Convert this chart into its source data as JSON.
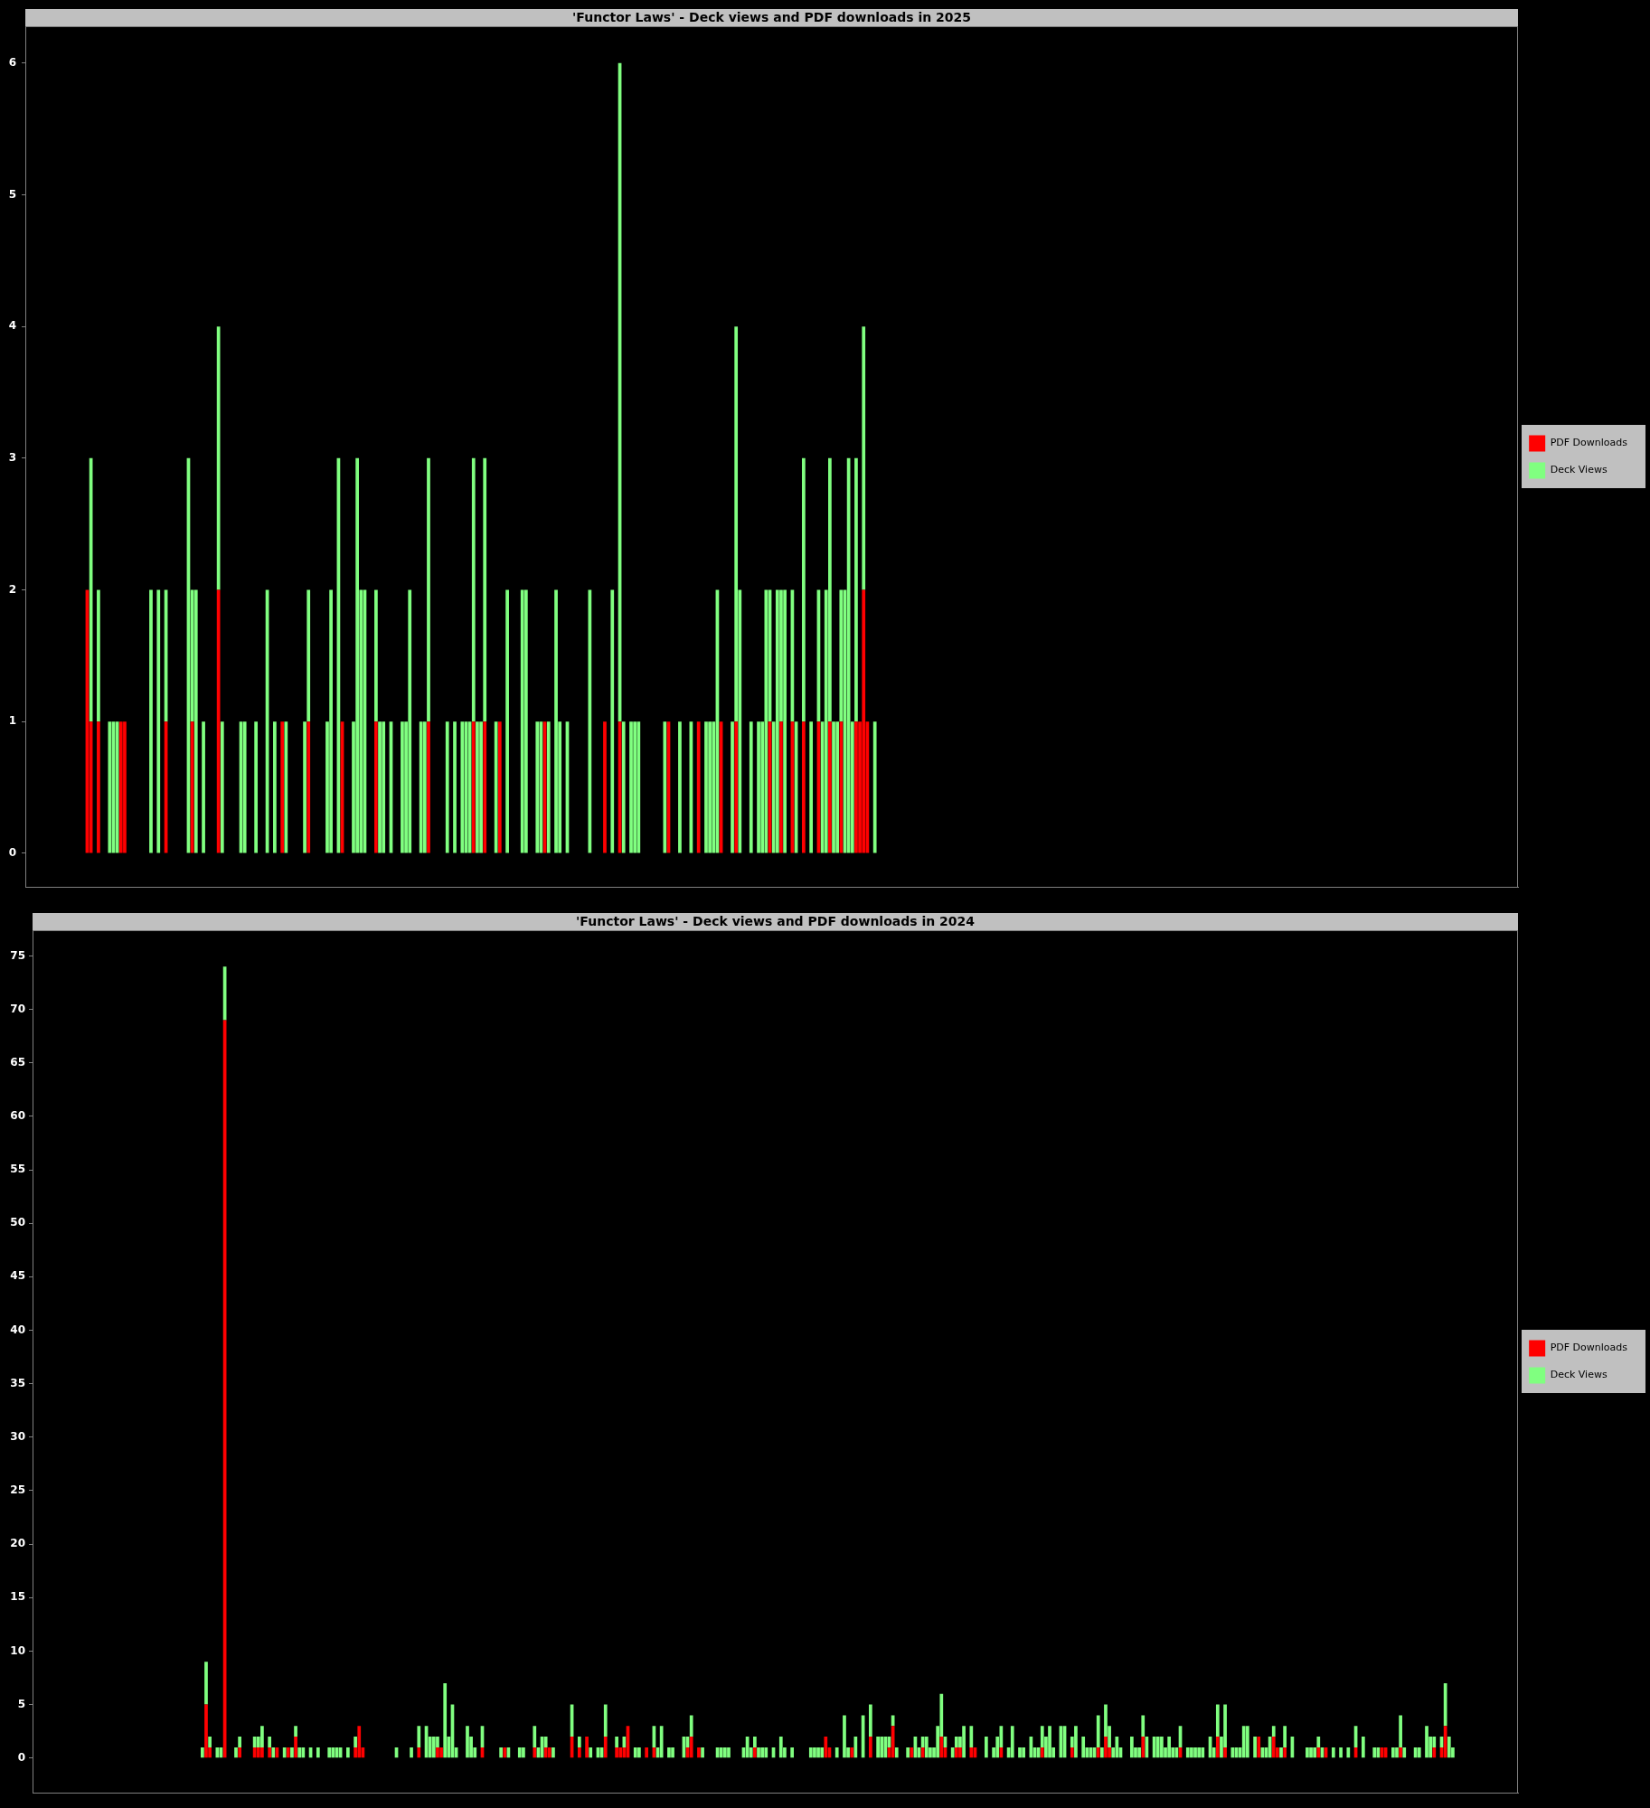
{
  "chart_data": [
    {
      "type": "bar",
      "title": "'Functor Laws' - Deck views and PDF downloads in 2025",
      "categories": [
        null,
        null,
        null,
        null,
        null,
        null,
        null,
        null,
        null,
        null,
        null,
        null,
        null,
        null,
        null,
        null,
        null,
        null,
        null,
        null,
        null,
        null,
        null,
        null,
        null,
        null,
        null,
        null,
        null,
        null,
        null,
        null,
        null,
        null,
        null,
        null,
        null,
        null,
        null,
        null,
        null,
        null,
        null,
        null,
        null,
        null,
        null,
        null,
        null,
        null,
        null,
        null,
        null,
        null,
        null,
        null,
        null,
        null,
        null,
        null,
        null,
        null,
        null,
        null,
        null,
        null,
        null,
        null,
        null,
        null,
        null,
        null,
        null,
        null,
        null,
        null,
        null,
        null,
        null,
        null,
        null,
        null,
        null,
        null,
        null,
        null,
        null,
        null,
        null,
        null,
        null,
        null,
        null,
        null,
        null,
        null,
        null,
        null,
        null,
        null,
        null,
        null,
        null,
        null,
        null,
        null,
        null,
        null,
        null,
        null,
        null,
        null,
        null,
        null,
        null,
        null,
        null,
        null,
        null,
        null,
        null,
        null,
        null,
        null,
        null,
        null,
        null,
        null,
        null,
        null,
        null,
        null,
        null,
        null,
        null,
        null,
        null,
        null,
        null,
        null,
        null,
        null,
        null,
        null,
        null,
        null,
        null,
        null,
        null,
        null,
        null,
        null,
        null,
        null,
        null,
        null,
        null,
        null,
        null,
        null,
        null,
        null,
        null,
        null,
        null,
        null,
        null,
        null,
        null,
        null,
        null,
        null,
        null,
        null,
        null,
        null,
        null,
        null,
        null,
        null,
        null,
        null,
        null,
        null,
        null,
        null,
        null,
        null,
        null,
        null,
        null,
        null,
        null,
        null,
        null,
        null,
        null,
        null,
        null,
        null,
        null,
        null,
        null,
        null,
        null,
        null,
        null,
        null,
        null,
        null,
        null,
        null,
        null,
        null,
        null,
        null,
        null,
        null,
        null,
        null,
        null,
        null,
        null,
        null,
        null,
        null,
        null,
        null,
        null,
        null,
        null,
        null,
        null,
        null,
        null,
        null,
        null,
        null,
        null,
        null,
        null,
        null,
        null,
        null,
        null,
        null,
        null,
        null,
        null,
        null,
        null,
        null,
        null,
        null,
        null,
        null,
        null,
        null,
        null,
        null,
        null,
        null,
        null,
        null,
        null,
        null,
        null,
        null,
        null,
        null,
        null,
        null,
        null,
        null,
        null,
        null,
        null,
        null,
        null,
        null,
        null,
        null,
        null,
        null,
        null,
        null,
        null,
        null,
        null,
        null,
        null,
        null,
        null,
        null,
        null,
        null,
        null,
        null,
        null,
        null,
        null,
        null,
        null,
        null,
        null,
        null,
        null,
        null,
        null,
        null,
        null,
        null,
        null,
        null,
        null,
        null,
        null,
        null,
        null,
        null,
        null,
        null,
        null,
        null,
        null,
        null,
        null,
        null,
        null,
        null,
        null,
        null,
        null,
        null,
        null,
        null,
        null,
        null,
        null,
        null,
        null,
        null,
        null,
        null,
        null,
        null,
        null,
        null,
        null,
        null,
        null,
        null,
        null,
        null,
        null,
        null,
        null,
        null,
        null,
        null,
        null,
        null,
        null,
        null,
        null,
        null,
        null,
        null,
        null,
        null,
        null,
        null,
        null,
        null,
        null,
        null,
        null,
        null,
        null,
        null,
        null,
        null,
        null,
        null,
        null,
        null,
        null,
        null,
        null,
        null,
        null,
        null,
        null,
        null,
        null,
        null,
        null,
        null
      ],
      "series": [
        {
          "name": "PDF Downloads",
          "color": "#ff0000",
          "values": [
            null,
            null,
            null,
            null,
            null,
            null,
            null,
            null,
            null,
            null,
            null,
            null,
            null,
            null,
            null,
            null,
            2,
            1,
            0,
            1,
            0,
            0,
            0,
            0,
            0,
            1,
            1,
            0,
            0,
            0,
            0,
            0,
            0,
            0,
            0,
            0,
            0,
            1,
            0,
            0,
            0,
            0,
            0,
            0,
            1,
            0,
            0,
            0,
            0,
            0,
            0,
            2,
            0,
            0,
            0,
            0,
            0,
            0,
            0,
            0,
            0,
            0,
            0,
            0,
            0,
            0,
            0,
            0,
            1,
            0,
            0,
            0,
            0,
            0,
            0,
            1,
            0,
            0,
            0,
            0,
            0,
            0,
            0,
            0,
            1,
            0,
            0,
            0,
            0,
            0,
            0,
            0,
            0,
            1,
            0,
            0,
            0,
            0,
            0,
            0,
            0,
            0,
            0,
            0,
            0,
            0,
            0,
            1,
            0,
            0,
            0,
            0,
            0,
            0,
            0,
            0,
            0,
            0,
            0,
            1,
            0,
            0,
            1,
            0,
            0,
            0,
            1,
            0,
            0,
            0,
            0,
            0,
            0,
            0,
            0,
            0,
            0,
            0,
            1,
            0,
            0,
            0,
            0,
            0,
            0,
            0,
            0,
            0,
            0,
            0,
            0,
            0,
            0,
            0,
            1,
            0,
            0,
            0,
            1,
            0,
            0,
            0,
            0,
            0,
            0,
            0,
            0,
            0,
            0,
            0,
            0,
            1,
            0,
            0,
            0,
            0,
            0,
            0,
            0,
            1,
            0,
            0,
            0,
            0,
            0,
            1,
            0,
            0,
            0,
            1,
            0,
            0,
            0,
            0,
            0,
            0,
            0,
            0,
            1,
            0,
            0,
            1,
            0,
            0,
            1,
            0,
            0,
            1,
            0,
            0,
            0,
            1,
            0,
            0,
            1,
            0,
            0,
            1,
            0,
            0,
            0,
            1,
            1,
            2,
            1,
            0,
            0,
            null,
            null,
            null,
            null,
            null,
            null,
            null,
            null,
            null,
            null,
            null,
            null,
            null,
            null,
            null,
            null,
            null,
            null,
            null,
            null,
            null,
            null,
            null,
            null,
            null,
            null,
            null,
            null,
            null,
            null,
            null,
            null,
            null,
            null,
            null,
            null,
            null,
            null,
            null,
            null,
            null,
            null,
            null,
            null,
            null,
            null,
            null,
            null,
            null,
            null,
            null,
            null,
            null,
            null,
            null,
            null,
            null,
            null,
            null,
            null,
            null,
            null,
            null,
            null,
            null,
            null,
            null,
            null,
            null,
            null,
            null,
            null,
            null,
            null,
            null,
            null,
            null,
            null,
            null,
            null,
            null,
            null,
            null,
            null,
            null,
            null,
            null,
            null,
            null,
            null,
            null,
            null,
            null,
            null,
            null,
            null,
            null,
            null,
            null,
            null,
            null,
            null,
            null,
            null,
            null,
            null,
            null,
            null,
            null,
            null,
            null,
            null,
            null,
            null,
            null,
            null,
            null,
            null,
            null,
            null,
            null,
            null,
            null,
            null,
            null,
            null,
            null,
            null,
            null,
            null,
            null,
            null,
            null,
            null,
            null,
            null,
            null,
            null,
            null,
            null,
            null,
            null,
            null,
            null,
            null,
            null,
            null,
            null,
            null,
            null,
            null,
            null,
            null,
            null,
            null,
            null,
            null,
            null,
            null,
            null,
            null,
            null,
            null,
            null,
            null,
            null,
            null,
            null,
            null,
            null,
            null
          ]
        },
        {
          "name": "Deck Views",
          "color": "#80ff80",
          "values": [
            null,
            null,
            null,
            null,
            null,
            null,
            null,
            null,
            null,
            null,
            null,
            null,
            null,
            null,
            null,
            null,
            0,
            2,
            0,
            1,
            0,
            0,
            1,
            1,
            1,
            0,
            0,
            0,
            0,
            0,
            0,
            0,
            0,
            2,
            0,
            2,
            0,
            1,
            0,
            0,
            0,
            0,
            0,
            3,
            1,
            2,
            0,
            1,
            0,
            0,
            0,
            2,
            1,
            0,
            0,
            0,
            0,
            1,
            1,
            0,
            0,
            1,
            0,
            0,
            2,
            0,
            1,
            0,
            0,
            1,
            0,
            0,
            0,
            0,
            1,
            1,
            0,
            0,
            0,
            0,
            1,
            2,
            0,
            3,
            0,
            0,
            0,
            1,
            3,
            2,
            2,
            0,
            0,
            1,
            1,
            1,
            0,
            1,
            0,
            0,
            1,
            1,
            2,
            0,
            0,
            1,
            1,
            2,
            0,
            0,
            0,
            0,
            1,
            0,
            1,
            0,
            1,
            1,
            1,
            2,
            1,
            1,
            2,
            0,
            0,
            1,
            0,
            0,
            2,
            0,
            0,
            0,
            2,
            2,
            0,
            0,
            1,
            1,
            0,
            1,
            0,
            2,
            1,
            0,
            1,
            0,
            0,
            0,
            0,
            0,
            2,
            0,
            0,
            0,
            0,
            0,
            2,
            0,
            5,
            1,
            0,
            1,
            1,
            1,
            0,
            0,
            0,
            0,
            0,
            0,
            1,
            0,
            0,
            0,
            1,
            0,
            0,
            1,
            0,
            0,
            0,
            1,
            1,
            1,
            2,
            0,
            0,
            0,
            1,
            3,
            2,
            0,
            0,
            1,
            0,
            1,
            1,
            2,
            1,
            1,
            2,
            1,
            2,
            0,
            1,
            1,
            0,
            2,
            0,
            1,
            0,
            1,
            1,
            2,
            2,
            1,
            1,
            1,
            2,
            3,
            1,
            2,
            0,
            2,
            0,
            0,
            1,
            null,
            null,
            null,
            null,
            null,
            null,
            null,
            null,
            null,
            null,
            null,
            null,
            null,
            null,
            null,
            null,
            null,
            null,
            null,
            null,
            null,
            null,
            null,
            null,
            null,
            null,
            null,
            null,
            null,
            null,
            null,
            null,
            null,
            null,
            null,
            null,
            null,
            null,
            null,
            null,
            null,
            null,
            null,
            null,
            null,
            null,
            null,
            null,
            null,
            null,
            null,
            null,
            null,
            null,
            null,
            null,
            null,
            null,
            null,
            null,
            null,
            null,
            null,
            null,
            null,
            null,
            null,
            null,
            null,
            null,
            null,
            null,
            null,
            null,
            null,
            null,
            null,
            null,
            null,
            null,
            null,
            null,
            null,
            null,
            null,
            null,
            null,
            null,
            null,
            null,
            null,
            null,
            null,
            null,
            null,
            null,
            null,
            null,
            null,
            null,
            null,
            null,
            null,
            null,
            null,
            null,
            null,
            null,
            null,
            null,
            null,
            null,
            null,
            null,
            null,
            null,
            null,
            null,
            null,
            null,
            null,
            null,
            null,
            null,
            null,
            null,
            null,
            null,
            null,
            null,
            null,
            null,
            null,
            null,
            null,
            null,
            null,
            null,
            null,
            null,
            null,
            null,
            null,
            null,
            null,
            null,
            null,
            null,
            null,
            null,
            null,
            null,
            null,
            null,
            null,
            null,
            null,
            null,
            null,
            null,
            null,
            null,
            null,
            null,
            null,
            null,
            null,
            null,
            null,
            null,
            null
          ]
        }
      ],
      "stacked": true,
      "ylim": [
        -0.26,
        6.28
      ],
      "yticks": [
        0,
        1,
        2,
        3,
        4,
        5,
        6
      ],
      "grid": false,
      "legend": "right"
    },
    {
      "type": "bar",
      "title": "'Functor Laws' - Deck views and PDF downloads in 2024",
      "categories": [
        null,
        null,
        null,
        null,
        null,
        null,
        null,
        null,
        null,
        null,
        null,
        null,
        null,
        null,
        null,
        null,
        null,
        null,
        null,
        null,
        null,
        null,
        null,
        null,
        null,
        null,
        null,
        null,
        null,
        null,
        null,
        null,
        null,
        null,
        null,
        null,
        null,
        null,
        null,
        null,
        null,
        null,
        null,
        null,
        null,
        null,
        null,
        null,
        null,
        null,
        null,
        null,
        null,
        null,
        null,
        null,
        null,
        null,
        null,
        null,
        null,
        null,
        null,
        null,
        null,
        null,
        null,
        null,
        null,
        null,
        null,
        null,
        null,
        null,
        null,
        null,
        null,
        null,
        null,
        null,
        null,
        null,
        null,
        null,
        null,
        null,
        null,
        null,
        null,
        null,
        null,
        null,
        null,
        null,
        null,
        null,
        null,
        null,
        null,
        null,
        null,
        null,
        null,
        null,
        null,
        null,
        null,
        null,
        null,
        null,
        null,
        null,
        null,
        null,
        null,
        null,
        null,
        null,
        null,
        null,
        null,
        null,
        null,
        null,
        null,
        null,
        null,
        null,
        null,
        null,
        null,
        null,
        null,
        null,
        null,
        null,
        null,
        null,
        null,
        null,
        null,
        null,
        null,
        null,
        null,
        null,
        null,
        null,
        null,
        null,
        null,
        null,
        null,
        null,
        null,
        null,
        null,
        null,
        null,
        null,
        null,
        null,
        null,
        null,
        null,
        null,
        null,
        null,
        null,
        null,
        null,
        null,
        null,
        null,
        null,
        null,
        null,
        null,
        null,
        null,
        null,
        null,
        null,
        null,
        null,
        null,
        null,
        null,
        null,
        null,
        null,
        null,
        null,
        null,
        null,
        null,
        null,
        null,
        null,
        null,
        null,
        null,
        null,
        null,
        null,
        null,
        null,
        null,
        null,
        null,
        null,
        null,
        null,
        null,
        null,
        null,
        null,
        null,
        null,
        null,
        null,
        null,
        null,
        null,
        null,
        null,
        null,
        null,
        null,
        null,
        null,
        null,
        null,
        null,
        null,
        null,
        null,
        null,
        null,
        null,
        null,
        null,
        null,
        null,
        null,
        null,
        null,
        null,
        null,
        null,
        null,
        null,
        null,
        null,
        null,
        null,
        null,
        null,
        null,
        null,
        null,
        null,
        null,
        null,
        null,
        null,
        null,
        null,
        null,
        null,
        null,
        null,
        null,
        null,
        null,
        null,
        null,
        null,
        null,
        null,
        null,
        null,
        null,
        null,
        null,
        null,
        null,
        null,
        null,
        null,
        null,
        null,
        null,
        null,
        null,
        null,
        null,
        null,
        null,
        null,
        null,
        null,
        null,
        null,
        null,
        null,
        null,
        null,
        null,
        null,
        null,
        null,
        null,
        null,
        null,
        null,
        null,
        null,
        null,
        null,
        null,
        null,
        null,
        null,
        null,
        null,
        null,
        null,
        null,
        null,
        null,
        null,
        null,
        null,
        null,
        null,
        null,
        null,
        null,
        null,
        null,
        null,
        null,
        null,
        null,
        null,
        null,
        null,
        null,
        null,
        null,
        null,
        null,
        null,
        null,
        null,
        null,
        null,
        null,
        null,
        null,
        null,
        null,
        null,
        null,
        null,
        null,
        null,
        null,
        null,
        null,
        null,
        null,
        null,
        null,
        null,
        null,
        null,
        null,
        null,
        null,
        null,
        null,
        null,
        null,
        null,
        null,
        null,
        null,
        null,
        null,
        null,
        null,
        null,
        null,
        null,
        null,
        null
      ],
      "series": [
        {
          "name": "PDF Downloads",
          "color": "#ff0000",
          "values": [
            null,
            null,
            null,
            null,
            null,
            null,
            null,
            null,
            null,
            null,
            null,
            null,
            null,
            null,
            null,
            null,
            null,
            null,
            null,
            null,
            null,
            null,
            null,
            null,
            null,
            null,
            null,
            null,
            null,
            null,
            null,
            null,
            null,
            null,
            null,
            null,
            null,
            null,
            null,
            null,
            null,
            null,
            null,
            null,
            null,
            0,
            5,
            1,
            0,
            0,
            0,
            69,
            0,
            0,
            0,
            1,
            0,
            0,
            0,
            1,
            1,
            1,
            0,
            1,
            0,
            1,
            0,
            0,
            1,
            0,
            2,
            0,
            0,
            0,
            0,
            0,
            0,
            0,
            0,
            0,
            0,
            0,
            0,
            0,
            0,
            0,
            1,
            3,
            1,
            0,
            0,
            0,
            0,
            0,
            0,
            0,
            0,
            0,
            0,
            0,
            0,
            0,
            0,
            1,
            0,
            0,
            0,
            0,
            1,
            1,
            0,
            0,
            0,
            0,
            0,
            0,
            0,
            0,
            0,
            0,
            1,
            0,
            0,
            0,
            0,
            0,
            1,
            0,
            0,
            0,
            0,
            0,
            0,
            0,
            1,
            0,
            0,
            1,
            1,
            0,
            0,
            0,
            0,
            0,
            2,
            0,
            1,
            0,
            2,
            0,
            0,
            0,
            0,
            2,
            0,
            0,
            1,
            1,
            1,
            3,
            0,
            0,
            0,
            0,
            1,
            0,
            1,
            0,
            0,
            0,
            0,
            0,
            0,
            0,
            0,
            1,
            2,
            0,
            1,
            0,
            0,
            0,
            0,
            0,
            0,
            0,
            0,
            0,
            0,
            0,
            0,
            0,
            0,
            1,
            0,
            0,
            0,
            0,
            0,
            0,
            0,
            0,
            0,
            0,
            0,
            0,
            0,
            0,
            0,
            0,
            0,
            0,
            2,
            1,
            0,
            0,
            0,
            0,
            0,
            1,
            0,
            0,
            0,
            0,
            2,
            0,
            0,
            0,
            0,
            1,
            3,
            0,
            0,
            0,
            0,
            1,
            0,
            0,
            1,
            0,
            0,
            0,
            0,
            2,
            1,
            0,
            0,
            1,
            1,
            0,
            0,
            1,
            1,
            0,
            0,
            0,
            0,
            0,
            0,
            1,
            0,
            0,
            0,
            0,
            0,
            0,
            0,
            0,
            0,
            0,
            1,
            0,
            0,
            0,
            0,
            0,
            0,
            0,
            1,
            0,
            0,
            0,
            0,
            0,
            0,
            1,
            0,
            2,
            1,
            0,
            0,
            0,
            0,
            0,
            0,
            0,
            0,
            2,
            0,
            0,
            0,
            0,
            0,
            0,
            0,
            0,
            0,
            1,
            0,
            0,
            0,
            0,
            0,
            0,
            0,
            0,
            0,
            2,
            0,
            1,
            0,
            0,
            0,
            0,
            0,
            0,
            0,
            0,
            2,
            0,
            0,
            0,
            2,
            1,
            0,
            1,
            0,
            0,
            0,
            0,
            0,
            0,
            0,
            0,
            1,
            0,
            1,
            0,
            0,
            0,
            0,
            0,
            0,
            0,
            1,
            0,
            0,
            0,
            0,
            0,
            0,
            1,
            1,
            0,
            0,
            0,
            1,
            0,
            0,
            0,
            0,
            0,
            0,
            0,
            0,
            1,
            0,
            1,
            3,
            0,
            0,
            null,
            null,
            null,
            null,
            null,
            null,
            null,
            null,
            null,
            null,
            null,
            null,
            null,
            null,
            null,
            null,
            null
          ]
        },
        {
          "name": "Deck Views",
          "color": "#80ff80",
          "values": [
            null,
            null,
            null,
            null,
            null,
            null,
            null,
            null,
            null,
            null,
            null,
            null,
            null,
            null,
            null,
            null,
            null,
            null,
            null,
            null,
            null,
            null,
            null,
            null,
            null,
            null,
            null,
            null,
            null,
            null,
            null,
            null,
            null,
            null,
            null,
            null,
            null,
            null,
            null,
            null,
            null,
            null,
            null,
            null,
            null,
            1,
            4,
            1,
            0,
            1,
            1,
            5,
            0,
            0,
            1,
            1,
            0,
            0,
            0,
            1,
            1,
            2,
            0,
            1,
            1,
            0,
            0,
            1,
            0,
            1,
            1,
            1,
            1,
            0,
            1,
            0,
            1,
            0,
            0,
            1,
            1,
            1,
            1,
            0,
            1,
            0,
            1,
            0,
            0,
            0,
            0,
            0,
            0,
            0,
            0,
            0,
            0,
            1,
            0,
            0,
            0,
            1,
            0,
            2,
            0,
            3,
            2,
            2,
            1,
            0,
            7,
            2,
            5,
            1,
            0,
            0,
            3,
            2,
            1,
            0,
            2,
            0,
            0,
            0,
            0,
            1,
            0,
            1,
            0,
            0,
            1,
            1,
            0,
            0,
            2,
            1,
            2,
            1,
            0,
            1,
            0,
            0,
            0,
            0,
            3,
            0,
            1,
            0,
            0,
            1,
            0,
            1,
            1,
            3,
            0,
            0,
            1,
            0,
            1,
            0,
            0,
            1,
            1,
            0,
            0,
            0,
            2,
            1,
            3,
            0,
            1,
            1,
            0,
            0,
            2,
            1,
            2,
            0,
            0,
            1,
            0,
            0,
            0,
            1,
            1,
            1,
            1,
            0,
            0,
            0,
            1,
            2,
            1,
            1,
            1,
            1,
            1,
            0,
            1,
            0,
            2,
            1,
            0,
            1,
            0,
            0,
            0,
            0,
            1,
            1,
            1,
            1,
            0,
            0,
            0,
            1,
            0,
            4,
            1,
            0,
            2,
            0,
            4,
            0,
            3,
            0,
            2,
            2,
            2,
            1,
            1,
            1,
            0,
            0,
            1,
            0,
            2,
            1,
            1,
            2,
            1,
            1,
            3,
            4,
            1,
            0,
            1,
            1,
            1,
            3,
            0,
            2,
            0,
            0,
            0,
            2,
            0,
            1,
            2,
            2,
            0,
            1,
            3,
            0,
            1,
            1,
            0,
            2,
            1,
            1,
            2,
            2,
            3,
            1,
            0,
            3,
            3,
            0,
            1,
            3,
            0,
            2,
            1,
            1,
            1,
            3,
            1,
            3,
            2,
            1,
            2,
            1,
            0,
            0,
            2,
            1,
            1,
            2,
            2,
            0,
            2,
            2,
            2,
            1,
            2,
            1,
            1,
            2,
            0,
            1,
            1,
            1,
            1,
            1,
            0,
            2,
            1,
            3,
            2,
            4,
            0,
            1,
            1,
            1,
            3,
            3,
            0,
            2,
            0,
            1,
            1,
            2,
            1,
            0,
            1,
            2,
            0,
            2,
            0,
            0,
            0,
            1,
            1,
            1,
            1,
            1,
            0,
            0,
            1,
            0,
            1,
            0,
            1,
            0,
            2,
            0,
            2,
            0,
            0,
            1,
            1,
            0,
            0,
            0,
            1,
            1,
            3,
            1,
            0,
            0,
            1,
            1,
            0,
            3,
            2,
            1,
            0,
            1,
            4,
            2,
            1,
            null,
            null,
            null,
            null,
            null,
            null,
            null,
            null,
            null,
            null,
            null,
            null,
            null,
            null,
            null,
            null,
            null
          ]
        }
      ],
      "stacked": true,
      "ylim": [
        -3.3,
        77.4
      ],
      "yticks": [
        0,
        5,
        10,
        15,
        20,
        25,
        30,
        35,
        40,
        45,
        50,
        55,
        60,
        65,
        70,
        75
      ],
      "grid": false,
      "legend": "right"
    }
  ]
}
